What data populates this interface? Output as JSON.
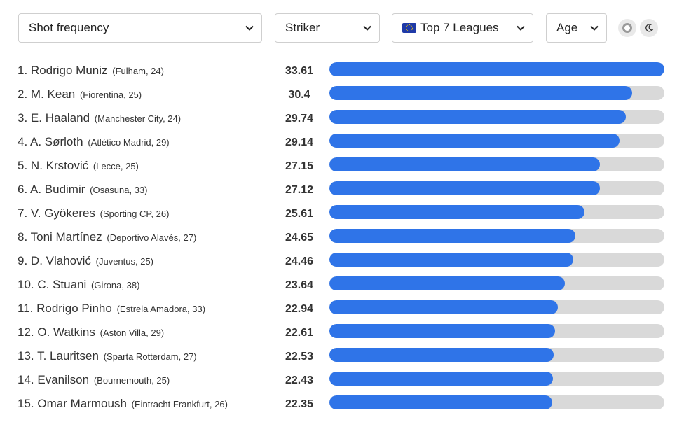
{
  "filters": {
    "metric": "Shot frequency",
    "position": "Striker",
    "league_flag": "eu-flag-icon",
    "league": "Top 7 Leagues",
    "sort": "Age"
  },
  "theme": {
    "light_icon": "light-mode-icon",
    "dark_icon": "moon-icon"
  },
  "colors": {
    "bar_fill": "#2f74e8",
    "bar_track": "#d9d9d9"
  },
  "max_value": 33.61,
  "players": [
    {
      "rank": "1.",
      "name": "Rodrigo Muniz",
      "meta": "(Fulham, 24)",
      "value": "33.61"
    },
    {
      "rank": "2.",
      "name": "M. Kean",
      "meta": "(Fiorentina, 25)",
      "value": "30.4"
    },
    {
      "rank": "3.",
      "name": "E. Haaland",
      "meta": "(Manchester City, 24)",
      "value": "29.74"
    },
    {
      "rank": "4.",
      "name": "A. Sørloth",
      "meta": "(Atlético Madrid, 29)",
      "value": "29.14"
    },
    {
      "rank": "5.",
      "name": "N. Krstović",
      "meta": "(Lecce, 25)",
      "value": "27.15"
    },
    {
      "rank": "6.",
      "name": "A. Budimir",
      "meta": "(Osasuna, 33)",
      "value": "27.12"
    },
    {
      "rank": "7.",
      "name": "V. Gyökeres",
      "meta": "(Sporting CP, 26)",
      "value": "25.61"
    },
    {
      "rank": "8.",
      "name": "Toni Martínez",
      "meta": "(Deportivo Alavés, 27)",
      "value": "24.65"
    },
    {
      "rank": "9.",
      "name": "D. Vlahović",
      "meta": "(Juventus, 25)",
      "value": "24.46"
    },
    {
      "rank": "10.",
      "name": "C. Stuani",
      "meta": "(Girona, 38)",
      "value": "23.64"
    },
    {
      "rank": "11.",
      "name": "Rodrigo Pinho",
      "meta": "(Estrela Amadora, 33)",
      "value": "22.94"
    },
    {
      "rank": "12.",
      "name": "O. Watkins",
      "meta": "(Aston Villa, 29)",
      "value": "22.61"
    },
    {
      "rank": "13.",
      "name": "T. Lauritsen",
      "meta": "(Sparta Rotterdam, 27)",
      "value": "22.53"
    },
    {
      "rank": "14.",
      "name": "Evanilson",
      "meta": "(Bournemouth, 25)",
      "value": "22.43"
    },
    {
      "rank": "15.",
      "name": "Omar Marmoush",
      "meta": "(Eintracht Frankfurt, 26)",
      "value": "22.35"
    }
  ]
}
